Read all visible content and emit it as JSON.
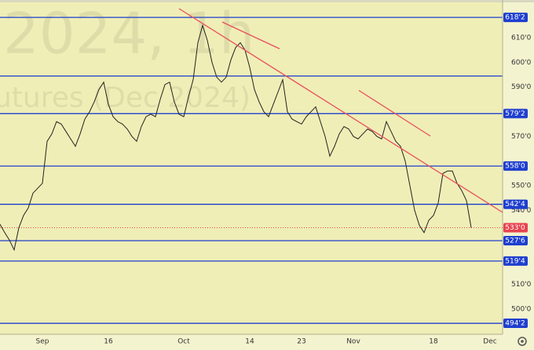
{
  "chart_data": {
    "type": "line",
    "watermark": "2024, 1h",
    "watermark_subtitle": "utures (Dec 2024)",
    "categories": [
      null,
      null,
      null,
      null,
      null,
      null,
      null,
      null,
      null,
      "Sep",
      null,
      null,
      null,
      null,
      null,
      null,
      null,
      null,
      null,
      null,
      null,
      null,
      null,
      "16",
      null,
      null,
      null,
      null,
      null,
      null,
      null,
      null,
      null,
      null,
      null,
      null,
      null,
      null,
      null,
      "Oct",
      null,
      null,
      null,
      null,
      null,
      null,
      null,
      null,
      null,
      null,
      null,
      null,
      null,
      "14",
      null,
      null,
      null,
      null,
      null,
      null,
      null,
      null,
      null,
      null,
      "23",
      null,
      null,
      null,
      null,
      null,
      null,
      null,
      null,
      null,
      null,
      "Nov",
      null,
      null,
      null,
      null,
      null,
      null,
      null,
      null,
      null,
      null,
      null,
      null,
      null,
      null,
      null,
      null,
      "18",
      null,
      null,
      null,
      null,
      null,
      null,
      null,
      null,
      null,
      null,
      null,
      "Dec"
    ],
    "series": [
      {
        "color": "#222222",
        "values": [
          534.4,
          531,
          528,
          524,
          533,
          538,
          541,
          547,
          549,
          551,
          568,
          571,
          576,
          575,
          572,
          569,
          566,
          571,
          577,
          580,
          584,
          589,
          592,
          583,
          578,
          576,
          575,
          573,
          570,
          568,
          574,
          578,
          579,
          578,
          585,
          591,
          592,
          584,
          579,
          578,
          586,
          593,
          608,
          615,
          609,
          600,
          594,
          592,
          594,
          601,
          606,
          608,
          605,
          598,
          589,
          584,
          580,
          578,
          583,
          588,
          593,
          580,
          577,
          576,
          575,
          578,
          580,
          582,
          576,
          570,
          562,
          566,
          571,
          574,
          573,
          570,
          569,
          571,
          573,
          572,
          570,
          569,
          576,
          572,
          568,
          566,
          560,
          550,
          540,
          534,
          531,
          536,
          538,
          543,
          555,
          556,
          556,
          551,
          548,
          544,
          533,
          null,
          null,
          null,
          null
        ]
      }
    ],
    "ylim": [
      489.8,
      625.3
    ],
    "yticks": [
      {
        "value": 500,
        "label": "500'0"
      },
      {
        "value": 510,
        "label": "510'0"
      },
      {
        "value": 540,
        "label": "540'0"
      },
      {
        "value": 550,
        "label": "550'0"
      },
      {
        "value": 570,
        "label": "570'0"
      },
      {
        "value": 590,
        "label": "590'0"
      },
      {
        "value": 600,
        "label": "600'0"
      },
      {
        "value": 610,
        "label": "610'0"
      }
    ],
    "levels": [
      {
        "value": 618.25,
        "label": "618'2"
      },
      {
        "value": 594.5
      },
      {
        "value": 579.25,
        "label": "579'2"
      },
      {
        "value": 558,
        "label": "558'0"
      },
      {
        "value": 542.5,
        "label": "542'4"
      },
      {
        "value": 527.75,
        "label": "527'6"
      },
      {
        "value": 519.5,
        "label": "519'4"
      },
      {
        "value": 494.25,
        "label": "494'2"
      }
    ],
    "level_color": "#1f3fcf",
    "last_price": {
      "value": 533,
      "label": "533'0"
    },
    "last_price_color": "#e8434f"
  }
}
